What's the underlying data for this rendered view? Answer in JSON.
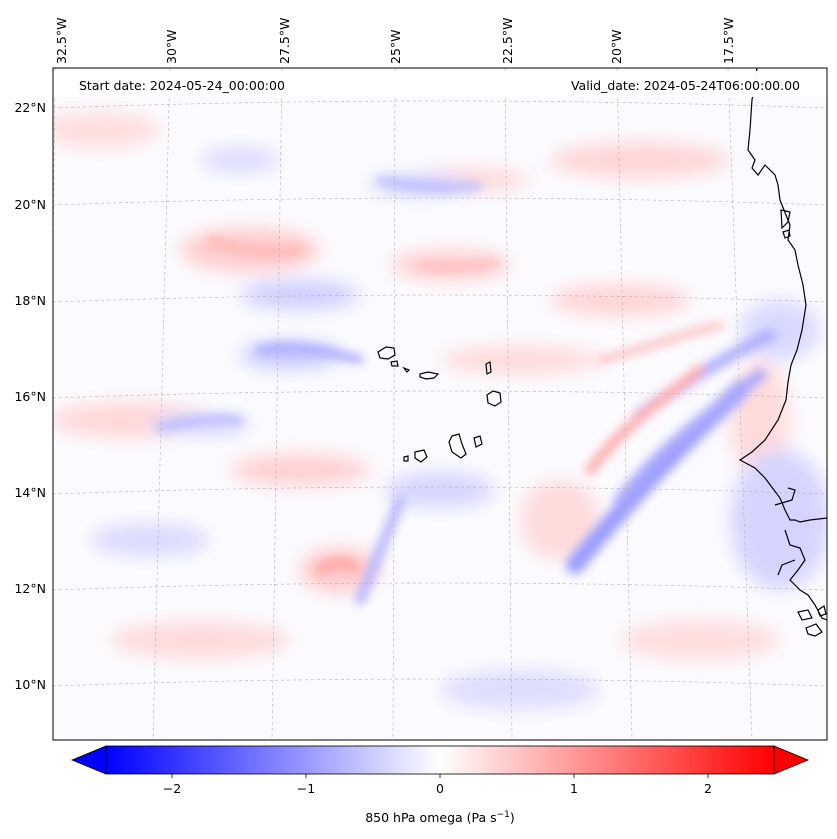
{
  "header": {
    "start_date": "Start date: 2024-05-24_00:00:00",
    "valid_date": "Valid_date: 2024-05-24T06:00:00.00"
  },
  "map": {
    "lon_labels": [
      "32.5°W",
      "30°W",
      "27.5°W",
      "25°W",
      "22.5°W",
      "20°W",
      "17.5°W"
    ],
    "lat_labels": [
      "22°N",
      "20°N",
      "18°N",
      "16°N",
      "14°N",
      "12°N",
      "10°N"
    ],
    "gridlines": true,
    "colormap": "bwr",
    "colors": {
      "negative": "#0000ff",
      "zero": "#ffffff",
      "positive": "#ff0000",
      "coast": "#000000",
      "grid": "#b0b0b0"
    }
  },
  "colorbar": {
    "ticks": [
      "−2",
      "−1",
      "0",
      "1",
      "2"
    ],
    "range": [
      -2.6,
      2.6
    ],
    "extend": "both",
    "label_prefix": "850 hPa omega (Pa s",
    "label_sup": "−1",
    "label_suffix": ")"
  }
}
